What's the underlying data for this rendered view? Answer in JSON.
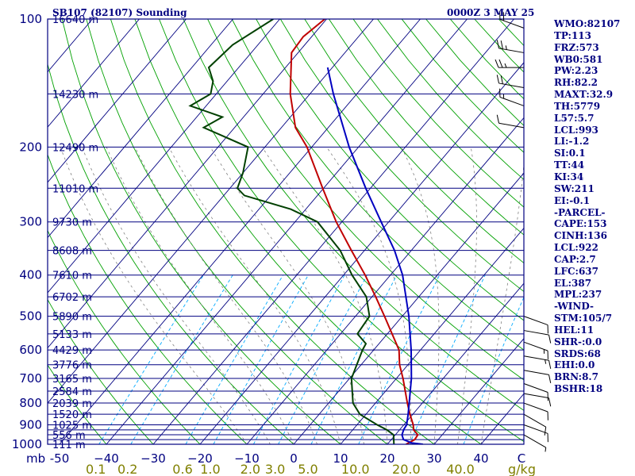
{
  "header": {
    "title": "SB107 (82107) Sounding",
    "timestamp": "0000Z  3 MAY 25"
  },
  "colors": {
    "frame": "#000080",
    "isobar": "#000080",
    "isotherm": "#000080",
    "dry_adiabat": "#00a000",
    "moist_adiabat": "#808080",
    "mixing_ratio": "#00aaff",
    "temperature": "#c00000",
    "dewpoint": "#004000",
    "parcel": "#0000c0",
    "wind": "#000000",
    "mixing_label": "#808000"
  },
  "indices": [
    "WMO:82107",
    "TP:113",
    "FRZ:573",
    "WB0:581",
    "PW:2.23",
    "RH:82.2",
    "MAXT:32.9",
    "TH:5779",
    "L57:5.7",
    "LCL:993",
    "LI:-1.2",
    "SI:0.1",
    "TT:44",
    "KI:34",
    "SW:211",
    "EI:-0.1",
    "-PARCEL-",
    "CAPE:153",
    "CINH:136",
    "LCL:922",
    "CAP:2.7",
    "LFC:637",
    "EL:387",
    "MPL:237",
    "-WIND-",
    "STM:105/7",
    "HEL:11",
    "SHR-:0.0",
    "SRDS:68",
    "EHI:0.0",
    "BRN:8.7",
    "BSHR:18"
  ],
  "chart_data": {
    "type": "line",
    "title": "SB107 (82107) Sounding",
    "chart_kind": "skew-T log-p diagram",
    "ylabel": "mb",
    "xlabel": "C",
    "mixing_ratio_unit": "g/kg",
    "ylim": [
      1000,
      100
    ],
    "xlim": [
      -50,
      50
    ],
    "y_scale": "log",
    "grid": true,
    "isobar_labels": [
      {
        "p": 100,
        "label": "100"
      },
      {
        "p": 200,
        "label": "200"
      },
      {
        "p": 300,
        "label": "300"
      },
      {
        "p": 400,
        "label": "400"
      },
      {
        "p": 500,
        "label": "500"
      },
      {
        "p": 600,
        "label": "600"
      },
      {
        "p": 700,
        "label": "700"
      },
      {
        "p": 800,
        "label": "800"
      },
      {
        "p": 900,
        "label": "900"
      },
      {
        "p": 1000,
        "label": "1000"
      }
    ],
    "isobars": [
      100,
      150,
      200,
      250,
      300,
      350,
      400,
      450,
      500,
      550,
      600,
      650,
      700,
      750,
      800,
      850,
      900,
      925,
      950,
      975,
      1000
    ],
    "height_labels": [
      {
        "p": 100,
        "label": "16640 m"
      },
      {
        "p": 150,
        "label": "14230 m"
      },
      {
        "p": 200,
        "label": "12490 m"
      },
      {
        "p": 250,
        "label": "11010 m"
      },
      {
        "p": 300,
        "label": "9730 m"
      },
      {
        "p": 350,
        "label": "8608 m"
      },
      {
        "p": 400,
        "label": "7610 m"
      },
      {
        "p": 450,
        "label": "6702 m"
      },
      {
        "p": 500,
        "label": "5890 m"
      },
      {
        "p": 550,
        "label": "5133 m"
      },
      {
        "p": 600,
        "label": "4429 m"
      },
      {
        "p": 650,
        "label": "3776 m"
      },
      {
        "p": 700,
        "label": "3165 m"
      },
      {
        "p": 750,
        "label": "2584 m"
      },
      {
        "p": 800,
        "label": "2039 m"
      },
      {
        "p": 850,
        "label": "1520 m"
      },
      {
        "p": 900,
        "label": "1025 m"
      },
      {
        "p": 950,
        "label": "556 m"
      },
      {
        "p": 1000,
        "label": "111 m"
      }
    ],
    "temperature_ticks": [
      {
        "t": -50,
        "label": "-50"
      },
      {
        "t": -40,
        "label": "−40"
      },
      {
        "t": -30,
        "label": "−30"
      },
      {
        "t": -20,
        "label": "−20"
      },
      {
        "t": -10,
        "label": "−10"
      },
      {
        "t": 0,
        "label": "0"
      },
      {
        "t": 10,
        "label": "10"
      },
      {
        "t": 20,
        "label": "20"
      },
      {
        "t": 30,
        "label": "30"
      },
      {
        "t": 40,
        "label": "40"
      }
    ],
    "mixing_ratios": [
      {
        "w": 0.1,
        "label": "0.1"
      },
      {
        "w": 0.2,
        "label": "0.2"
      },
      {
        "w": 0.6,
        "label": "0.6"
      },
      {
        "w": 1.0,
        "label": "1.0"
      },
      {
        "w": 2.0,
        "label": "2.0"
      },
      {
        "w": 3.0,
        "label": "3.0"
      },
      {
        "w": 5.0,
        "label": "5.0"
      },
      {
        "w": 10.0,
        "label": "10.0"
      },
      {
        "w": 20.0,
        "label": "20.0"
      },
      {
        "w": 40.0,
        "label": "40.0"
      }
    ],
    "series": [
      {
        "name": "Temperature",
        "points": [
          [
            1000,
            24.0
          ],
          [
            975,
            25.0
          ],
          [
            950,
            24.8
          ],
          [
            925,
            23.0
          ],
          [
            900,
            22.0
          ],
          [
            850,
            19.4
          ],
          [
            800,
            16.8
          ],
          [
            700,
            11.4
          ],
          [
            650,
            8.2
          ],
          [
            600,
            5.4
          ],
          [
            500,
            -3.8
          ],
          [
            450,
            -9.2
          ],
          [
            400,
            -15.4
          ],
          [
            350,
            -22.8
          ],
          [
            300,
            -31.2
          ],
          [
            250,
            -40.2
          ],
          [
            200,
            -51.0
          ],
          [
            180,
            -57.0
          ],
          [
            150,
            -64.2
          ],
          [
            120,
            -71.4
          ],
          [
            110,
            -71.8
          ],
          [
            100,
            -70.4
          ]
        ]
      },
      {
        "name": "Dewpoint",
        "points": [
          [
            1000,
            21.4
          ],
          [
            950,
            19.6
          ],
          [
            925,
            17.3
          ],
          [
            900,
            14.3
          ],
          [
            850,
            8.7
          ],
          [
            800,
            5.2
          ],
          [
            700,
            0.4
          ],
          [
            600,
            -2.4
          ],
          [
            580,
            -2.8
          ],
          [
            550,
            -6.4
          ],
          [
            500,
            -7.0
          ],
          [
            450,
            -11.2
          ],
          [
            400,
            -18.2
          ],
          [
            350,
            -25.2
          ],
          [
            300,
            -35.2
          ],
          [
            280,
            -43.2
          ],
          [
            260,
            -55.6
          ],
          [
            250,
            -58.4
          ],
          [
            230,
            -60.0
          ],
          [
            200,
            -63.6
          ],
          [
            180,
            -76.6
          ],
          [
            170,
            -74.5
          ],
          [
            160,
            -83.4
          ],
          [
            150,
            -81.2
          ],
          [
            140,
            -83.0
          ],
          [
            130,
            -86.4
          ],
          [
            115,
            -85.4
          ],
          [
            100,
            -81.4
          ]
        ]
      },
      {
        "name": "Parcel",
        "points": [
          [
            1000,
            27.6
          ],
          [
            993,
            25.0
          ],
          [
            975,
            22.6
          ],
          [
            950,
            21.4
          ],
          [
            922,
            20.8
          ],
          [
            900,
            20.6
          ],
          [
            850,
            19.0
          ],
          [
            800,
            17.2
          ],
          [
            700,
            13.2
          ],
          [
            600,
            8.0
          ],
          [
            500,
            1.4
          ],
          [
            400,
            -7.4
          ],
          [
            350,
            -13.6
          ],
          [
            300,
            -21.6
          ],
          [
            250,
            -31.0
          ],
          [
            200,
            -42.0
          ],
          [
            150,
            -55.0
          ],
          [
            130,
            -61.0
          ]
        ]
      }
    ],
    "wind_barbs": [
      {
        "p": 105,
        "dir": 290,
        "spd": 20
      },
      {
        "p": 120,
        "dir": 280,
        "spd": 25
      },
      {
        "p": 130,
        "dir": 270,
        "spd": 25
      },
      {
        "p": 145,
        "dir": 280,
        "spd": 20
      },
      {
        "p": 160,
        "dir": 290,
        "spd": 15
      },
      {
        "p": 180,
        "dir": 280,
        "spd": 10
      },
      {
        "p": 500,
        "dir": 110,
        "spd": 10
      },
      {
        "p": 540,
        "dir": 100,
        "spd": 10
      },
      {
        "p": 575,
        "dir": 110,
        "spd": 15
      },
      {
        "p": 620,
        "dir": 100,
        "spd": 15
      },
      {
        "p": 670,
        "dir": 100,
        "spd": 10
      },
      {
        "p": 720,
        "dir": 110,
        "spd": 10
      },
      {
        "p": 760,
        "dir": 100,
        "spd": 10
      },
      {
        "p": 800,
        "dir": 110,
        "spd": 10
      },
      {
        "p": 850,
        "dir": 120,
        "spd": 10
      },
      {
        "p": 900,
        "dir": 110,
        "spd": 10
      },
      {
        "p": 950,
        "dir": 120,
        "spd": 5
      }
    ]
  }
}
